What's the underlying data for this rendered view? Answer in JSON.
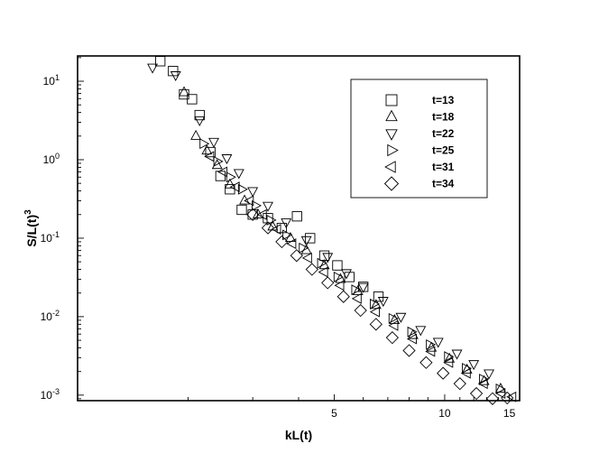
{
  "chart_data": {
    "type": "scatter",
    "xlabel": "kL(t)",
    "ylabel": "S/L(t)",
    "ylabel_sup": "3",
    "x_scale": "log",
    "y_scale": "log",
    "xlim": [
      1.0,
      16.0
    ],
    "ylim": [
      0.00085,
      21
    ],
    "x_ticks": [
      {
        "value": 5,
        "label": "5"
      },
      {
        "value": 10,
        "label": "10"
      },
      {
        "value": 15,
        "label": "15"
      }
    ],
    "y_ticks": [
      {
        "value": 0.001,
        "base": "10",
        "exp": "-3"
      },
      {
        "value": 0.01,
        "base": "10",
        "exp": "-2"
      },
      {
        "value": 0.1,
        "base": "10",
        "exp": "-1"
      },
      {
        "value": 1,
        "base": "10",
        "exp": "0"
      },
      {
        "value": 10,
        "base": "10",
        "exp": "1"
      }
    ],
    "grid": false,
    "legend_position": "top-right",
    "series": [
      {
        "name": "t=13",
        "marker": "square",
        "x": [
          1.68,
          1.82,
          1.95,
          2.05,
          2.15,
          2.3,
          2.45,
          2.6,
          2.8,
          3.0,
          3.3,
          3.6,
          3.96,
          4.3,
          4.7,
          5.1,
          5.5,
          6.0,
          6.6
        ],
        "y": [
          18,
          13.5,
          6.8,
          5.9,
          3.7,
          1.25,
          0.62,
          0.42,
          0.23,
          0.2,
          0.18,
          0.135,
          0.19,
          0.1,
          0.06,
          0.045,
          0.032,
          0.024,
          0.018
        ]
      },
      {
        "name": "t=18",
        "marker": "triangle-up",
        "x": [
          1.95,
          2.1,
          2.25,
          2.4,
          2.6,
          2.85,
          3.1,
          3.4,
          3.8,
          4.2,
          4.7,
          5.2,
          5.8,
          6.5,
          7.3,
          8.2,
          9.2,
          10.3,
          11.5,
          12.8,
          14.2
        ],
        "y": [
          7.2,
          2.0,
          1.3,
          0.85,
          0.48,
          0.3,
          0.2,
          0.14,
          0.1,
          0.07,
          0.045,
          0.03,
          0.021,
          0.014,
          0.009,
          0.0058,
          0.004,
          0.0029,
          0.0021,
          0.0015,
          0.0012
        ]
      },
      {
        "name": "t=22",
        "marker": "triangle-down",
        "x": [
          1.6,
          1.85,
          2.15,
          2.35,
          2.55,
          2.75,
          3.0,
          3.3,
          3.7,
          4.2,
          4.8,
          5.4,
          6.0,
          6.8,
          7.6,
          8.6,
          9.6,
          10.8,
          12.0,
          13.2
        ],
        "y": [
          15,
          12,
          3.2,
          1.7,
          1.05,
          0.68,
          0.4,
          0.26,
          0.16,
          0.095,
          0.058,
          0.036,
          0.024,
          0.016,
          0.01,
          0.0068,
          0.0048,
          0.0034,
          0.0025,
          0.0019
        ]
      },
      {
        "name": "t=25",
        "marker": "triangle-right",
        "x": [
          2.2,
          2.4,
          2.6,
          2.8,
          3.05,
          3.35,
          3.7,
          4.1,
          4.6,
          5.1,
          5.7,
          6.4,
          7.2,
          8.1,
          9.1,
          10.2,
          11.4,
          12.7,
          14.1
        ],
        "y": [
          1.6,
          0.95,
          0.6,
          0.42,
          0.26,
          0.17,
          0.11,
          0.075,
          0.048,
          0.032,
          0.022,
          0.0145,
          0.0095,
          0.0064,
          0.0044,
          0.0031,
          0.0022,
          0.0016,
          0.0012
        ]
      },
      {
        "name": "t=31",
        "marker": "triangle-left",
        "x": [
          2.3,
          2.5,
          2.7,
          2.95,
          3.2,
          3.5,
          3.85,
          4.25,
          4.7,
          5.2,
          5.8,
          6.5,
          7.3,
          8.2,
          9.2,
          10.3,
          11.5,
          12.8,
          14.3,
          15.3
        ],
        "y": [
          1.1,
          0.7,
          0.45,
          0.3,
          0.2,
          0.13,
          0.085,
          0.056,
          0.037,
          0.025,
          0.017,
          0.0115,
          0.0077,
          0.0052,
          0.0036,
          0.0026,
          0.0019,
          0.0014,
          0.00105,
          0.00095
        ]
      },
      {
        "name": "t=34",
        "marker": "diamond",
        "x": [
          3.0,
          3.3,
          3.6,
          3.95,
          4.35,
          4.8,
          5.3,
          5.9,
          6.5,
          7.2,
          8.0,
          8.9,
          9.9,
          11.0,
          12.2,
          13.5,
          14.8
        ],
        "y": [
          0.2,
          0.135,
          0.09,
          0.06,
          0.04,
          0.027,
          0.018,
          0.012,
          0.008,
          0.0054,
          0.0037,
          0.0026,
          0.0019,
          0.0014,
          0.00105,
          0.0009,
          0.00092
        ]
      }
    ]
  }
}
